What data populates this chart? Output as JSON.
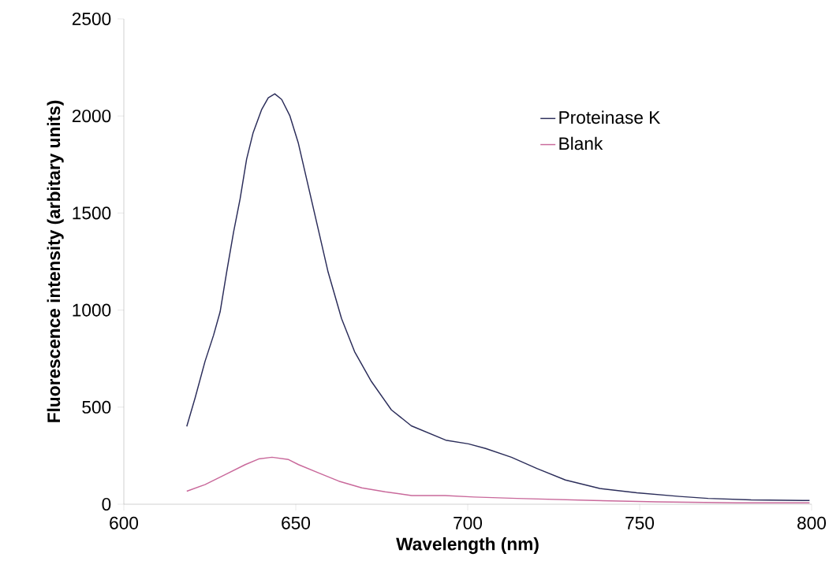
{
  "chart_data": {
    "type": "line",
    "xlabel": "Wavelength (nm)",
    "ylabel": "Fluorescence intensity (arbitary units)",
    "xlim": [
      600,
      800
    ],
    "xticks": [
      600,
      650,
      700,
      750,
      800
    ],
    "ylim": [
      0,
      2500
    ],
    "yticks": [
      0,
      500,
      1000,
      1500,
      2000,
      2500
    ],
    "grid": false,
    "legend": "top right",
    "marker": "none",
    "line_style": "solid",
    "series": [
      {
        "name": "Proteinase K",
        "color": "#2b2d5a",
        "x": [
          618.3,
          620.7,
          623.6,
          626.1,
          628,
          629.9,
          631.9,
          633.8,
          635.7,
          637.6,
          640.1,
          642,
          643.9,
          645.9,
          648.3,
          650.7,
          653.6,
          656.5,
          659.4,
          663.3,
          667.1,
          672,
          677.8,
          683.6,
          693.6,
          700.2,
          705.2,
          712.7,
          720.1,
          728.4,
          738.4,
          749.2,
          761.6,
          769.9,
          782.4,
          799.4
        ],
        "values": [
          401,
          546,
          735,
          871,
          991,
          1196,
          1401,
          1572,
          1777,
          1914,
          2034,
          2094,
          2114,
          2085,
          2000,
          1863,
          1641,
          1419,
          1196,
          957,
          786,
          632,
          486,
          404,
          330,
          311,
          287,
          242,
          184,
          125,
          81,
          59,
          40,
          30,
          22,
          19
        ]
      },
      {
        "name": "Blank",
        "color": "#c9699b",
        "x": [
          618.3,
          623.6,
          629.5,
          635.3,
          639.2,
          643.1,
          647.9,
          650.8,
          656.7,
          662.5,
          669.2,
          676,
          683.7,
          693.4,
          701.9,
          714.3,
          736.7,
          755,
          778.2,
          799.4
        ],
        "values": [
          67,
          101,
          153,
          204,
          233,
          242,
          230,
          204,
          161,
          119,
          84,
          64,
          45,
          45,
          37,
          30,
          19,
          12,
          7,
          7
        ]
      }
    ]
  }
}
